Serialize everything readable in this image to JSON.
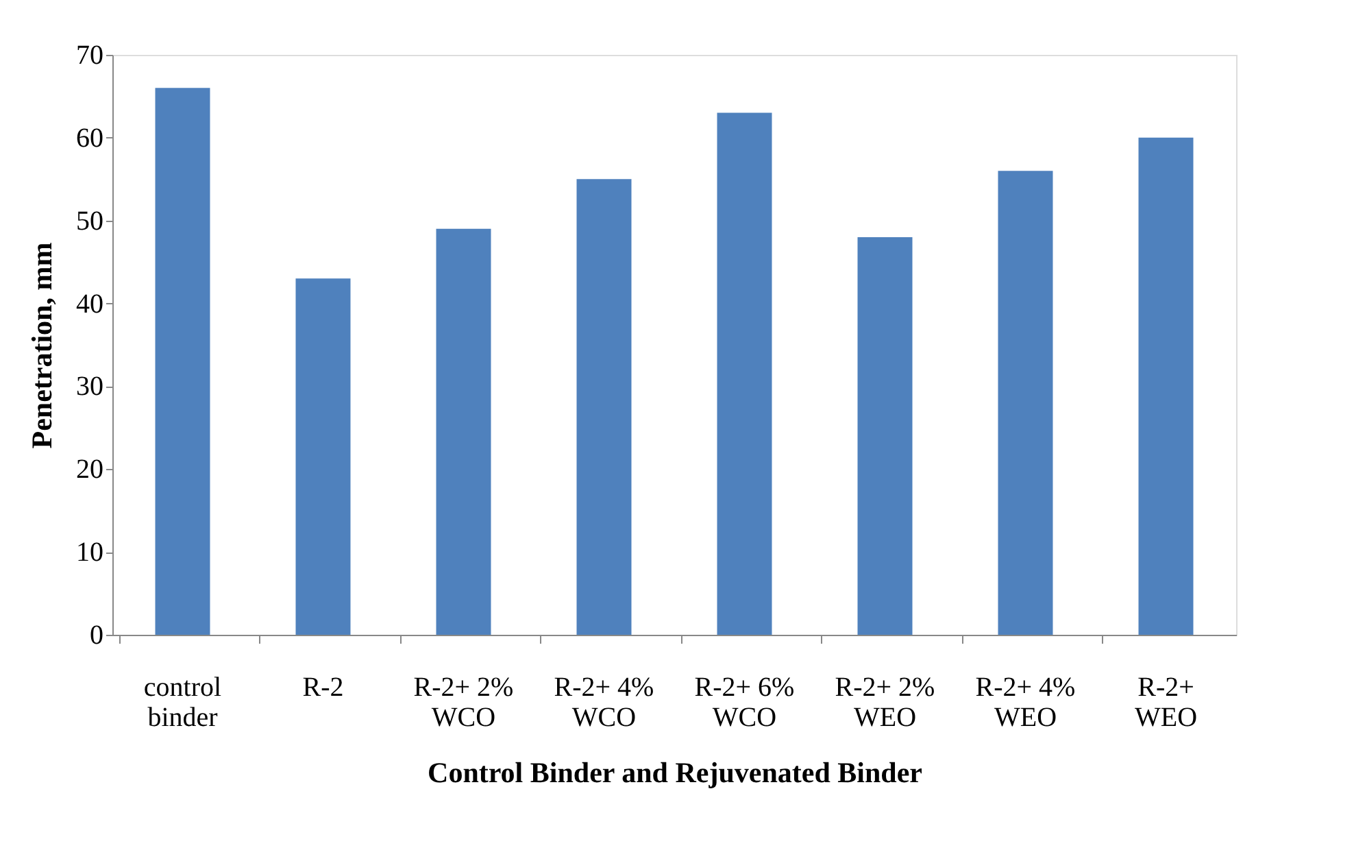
{
  "chart_data": {
    "type": "bar",
    "xlabel": "Control Binder and Rejuvenated Binder",
    "ylabel": "Penetration, mm",
    "categories": [
      "control binder",
      "R-2",
      "R-2+ 2% WCO",
      "R-2+ 4% WCO",
      "R-2+ 6% WCO",
      "R-2+ 2% WEO",
      "R-2+ 4% WEO",
      "R-2+ WEO"
    ],
    "values": [
      66,
      43,
      49,
      55,
      63,
      48,
      56,
      60
    ],
    "color": "#4f81bd",
    "ylim": [
      0,
      70
    ],
    "yticks": [
      0,
      10,
      20,
      30,
      40,
      50,
      60,
      70
    ],
    "grid": false
  }
}
